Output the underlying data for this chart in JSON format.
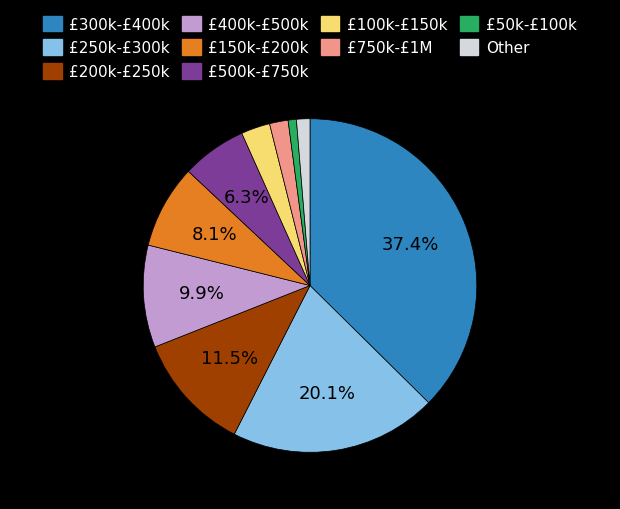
{
  "labels": [
    "£300k-£400k",
    "£250k-£300k",
    "£200k-£250k",
    "£400k-£500k",
    "£150k-£200k",
    "£500k-£750k",
    "£100k-£150k",
    "£750k-£1M",
    "£50k-£100k",
    "Other"
  ],
  "values": [
    37.4,
    20.1,
    11.5,
    9.9,
    8.1,
    6.3,
    2.8,
    1.8,
    0.8,
    1.3
  ],
  "colors": [
    "#2E86C1",
    "#85C1E9",
    "#A04000",
    "#C39BD3",
    "#E67E22",
    "#7D3C98",
    "#F7DC6F",
    "#F1948A",
    "#27AE60",
    "#D5D8DC"
  ],
  "pct_labels": [
    "37.4%",
    "20.1%",
    "11.5%",
    "9.9%",
    "8.1%",
    "6.3%",
    "",
    "",
    "",
    ""
  ],
  "background_color": "#000000",
  "text_color": "#000000",
  "label_fontsize": 13,
  "legend_fontsize": 11
}
